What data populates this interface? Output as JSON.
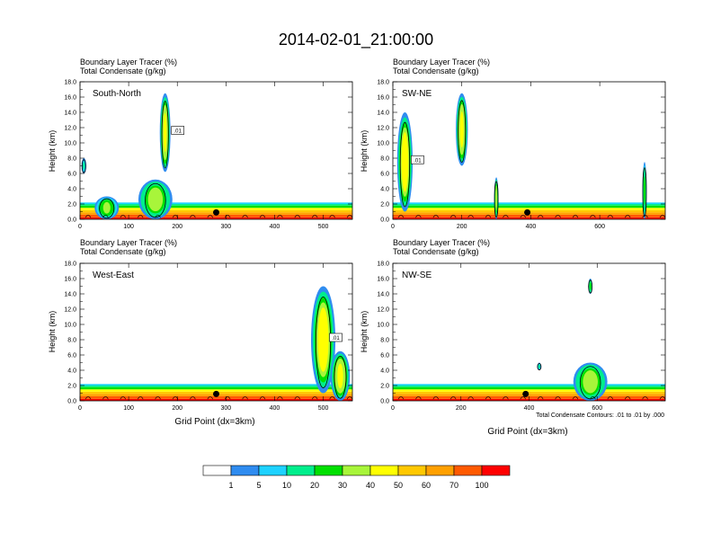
{
  "title": "2014-02-01_21:00:00",
  "colors": {
    "palette": [
      "#ffffff",
      "#2f8cf0",
      "#1ed2ff",
      "#00ee8c",
      "#00e000",
      "#a8f53a",
      "#ffff00",
      "#ffc800",
      "#ffa000",
      "#ff5a00",
      "#ff0000"
    ],
    "contour": "#000000"
  },
  "panels": [
    {
      "heading1": "Boundary Layer Tracer   (%)",
      "heading2": "Total Condensate   (g/kg)",
      "label": "South-North",
      "ylabel": "Height (km)",
      "xlabel": "",
      "xmax": 560,
      "xticks": [
        0,
        100,
        200,
        300,
        400,
        500
      ],
      "yticks": [
        "0.0",
        "2.0",
        "4.0",
        "6.0",
        "8.0",
        "10.0",
        "12.0",
        "14.0",
        "16.0",
        "18.0"
      ],
      "contour_label": ".01",
      "footnote": ""
    },
    {
      "heading1": "Boundary Layer Tracer   (%)",
      "heading2": "Total Condensate   (g/kg)",
      "label": "SW-NE",
      "ylabel": "Height (km)",
      "xlabel": "",
      "xmax": 790,
      "xticks": [
        0,
        200,
        400,
        600
      ],
      "yticks": [
        "0.0",
        "2.0",
        "4.0",
        "6.0",
        "8.0",
        "10.0",
        "12.0",
        "14.0",
        "16.0",
        "18.0"
      ],
      "contour_label": ".01",
      "footnote": ""
    },
    {
      "heading1": "Boundary Layer Tracer   (%)",
      "heading2": "Total Condensate   (g/kg)",
      "label": "West-East",
      "ylabel": "Height (km)",
      "xlabel": "Grid Point (dx=3km)",
      "xmax": 560,
      "xticks": [
        0,
        100,
        200,
        300,
        400,
        500
      ],
      "yticks": [
        "0.0",
        "2.0",
        "4.0",
        "6.0",
        "8.0",
        "10.0",
        "12.0",
        "14.0",
        "16.0",
        "18.0"
      ],
      "contour_label": ".01",
      "footnote": ""
    },
    {
      "heading1": "Boundary Layer Tracer   (%)",
      "heading2": "Total Condensate   (g/kg)",
      "label": "NW-SE",
      "ylabel": "Height (km)",
      "xlabel": "Grid Point (dx=3km)",
      "xmax": 800,
      "xticks": [
        0,
        200,
        400,
        600
      ],
      "yticks": [
        "0.0",
        "2.0",
        "4.0",
        "6.0",
        "8.0",
        "10.0",
        "12.0",
        "14.0",
        "16.0",
        "18.0"
      ],
      "contour_label": "",
      "footnote": "Total Condensate Contours: .01 to .01 by .000"
    }
  ],
  "colorbar": {
    "labels": [
      "1",
      "5",
      "10",
      "20",
      "30",
      "40",
      "50",
      "60",
      "70",
      "100"
    ]
  },
  "chart_data": {
    "type": "heatmap",
    "title": "2014-02-01_21:00:00",
    "variable": "Boundary Layer Tracer (%)",
    "contour_variable": "Total Condensate (g/kg)",
    "contour_levels": [
      0.01
    ],
    "levels": [
      1,
      5,
      10,
      20,
      30,
      40,
      50,
      60,
      70,
      100
    ],
    "ylabel": "Height (km)",
    "ylim": [
      0,
      18
    ],
    "xlabel": "Grid Point (dx=3km)",
    "panels": [
      {
        "name": "South-North",
        "xlim": [
          0,
          560
        ],
        "surface_marker_x": 280,
        "features": [
          {
            "kind": "tower",
            "x": 175,
            "width": 22,
            "z_bottom": 6.2,
            "z_top": 16.5,
            "peak": 40
          },
          {
            "kind": "mound",
            "x": 155,
            "width": 70,
            "z_top": 5.2,
            "peak": 35
          },
          {
            "kind": "mound",
            "x": 55,
            "width": 50,
            "z_top": 3.0,
            "peak": 30
          },
          {
            "kind": "blob",
            "x": 8,
            "width": 10,
            "z_bottom": 6.0,
            "z_top": 8.0,
            "peak": 10
          }
        ]
      },
      {
        "name": "SW-NE",
        "xlim": [
          0,
          790
        ],
        "surface_marker_x": 390,
        "features": [
          {
            "kind": "tower",
            "x": 35,
            "width": 45,
            "z_bottom": 1.0,
            "z_top": 14.0,
            "peak": 45
          },
          {
            "kind": "tower",
            "x": 200,
            "width": 35,
            "z_bottom": 7.0,
            "z_top": 16.5,
            "peak": 40
          },
          {
            "kind": "spike",
            "x": 300,
            "width": 12,
            "z_top": 5.5,
            "peak": 35
          },
          {
            "kind": "spike",
            "x": 730,
            "width": 12,
            "z_top": 7.5,
            "peak": 20
          }
        ]
      },
      {
        "name": "West-East",
        "xlim": [
          0,
          560
        ],
        "surface_marker_x": 280,
        "features": [
          {
            "kind": "tower",
            "x": 500,
            "width": 50,
            "z_bottom": 1.0,
            "z_top": 15.0,
            "peak": 45
          },
          {
            "kind": "mound",
            "x": 535,
            "width": 40,
            "z_top": 6.5,
            "peak": 40
          }
        ]
      },
      {
        "name": "NW-SE",
        "xlim": [
          0,
          800
        ],
        "surface_marker_x": 390,
        "features": [
          {
            "kind": "blob",
            "x": 580,
            "width": 12,
            "z_bottom": 14.0,
            "z_top": 16.0,
            "peak": 20
          },
          {
            "kind": "mound",
            "x": 580,
            "width": 100,
            "z_top": 5.0,
            "peak": 35
          },
          {
            "kind": "blob",
            "x": 430,
            "width": 10,
            "z_bottom": 4.0,
            "z_top": 5.0,
            "peak": 10
          }
        ]
      }
    ]
  }
}
